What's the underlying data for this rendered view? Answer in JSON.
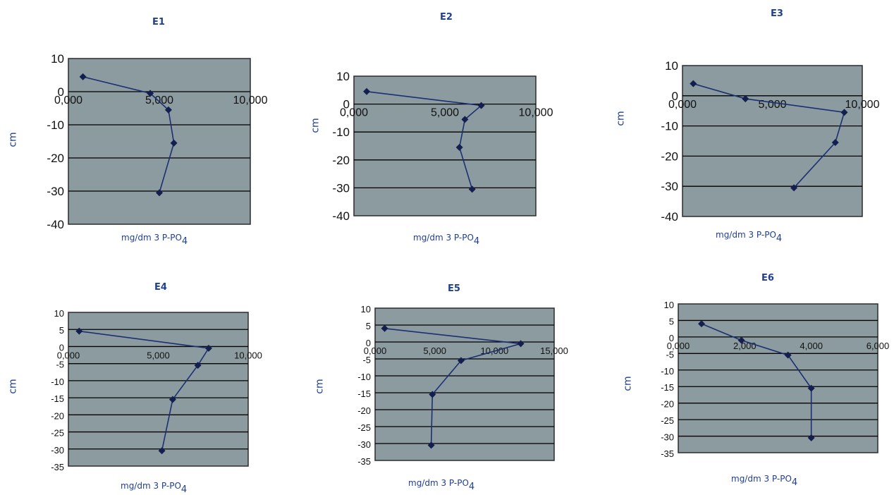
{
  "chart_data": [
    {
      "type": "line",
      "title": "E1",
      "ylabel": "cm",
      "xlabel": "mg/dm 3 P-PO",
      "xlabel_sub": "4",
      "xlim": [
        0,
        10
      ],
      "ylim": [
        -40,
        10
      ],
      "xticks": [
        "0,000",
        "5,000",
        "10,000"
      ],
      "yticks": [
        "10",
        "0",
        "-10",
        "-20",
        "-30",
        "-40"
      ],
      "series": [
        {
          "x": [
            0.8,
            4.5,
            5.5,
            5.8,
            5.0
          ],
          "y": [
            4.5,
            -0.5,
            -5.5,
            -15.5,
            -30.5
          ]
        }
      ]
    },
    {
      "type": "line",
      "title": "E2",
      "ylabel": "cm",
      "xlabel": "mg/dm 3 P-PO",
      "xlabel_sub": "4",
      "xlim": [
        0,
        10
      ],
      "ylim": [
        -40,
        10
      ],
      "xticks": [
        "0,000",
        "5,000",
        "10,000"
      ],
      "yticks": [
        "10",
        "0",
        "-10",
        "-20",
        "-30",
        "-40"
      ],
      "series": [
        {
          "x": [
            0.7,
            7.0,
            6.1,
            5.8,
            6.5
          ],
          "y": [
            4.5,
            -0.5,
            -5.5,
            -15.5,
            -30.5
          ]
        }
      ]
    },
    {
      "type": "line",
      "title": "E3",
      "ylabel": "cm",
      "xlabel": "mg/dm 3 P-PO",
      "xlabel_sub": "4",
      "xlim": [
        0,
        10
      ],
      "ylim": [
        -40,
        10
      ],
      "xticks": [
        "0,000",
        "5,000",
        "10,000"
      ],
      "yticks": [
        "10",
        "0",
        "-10",
        "-20",
        "-30",
        "-40"
      ],
      "series": [
        {
          "x": [
            0.6,
            3.5,
            9.0,
            8.5,
            6.2
          ],
          "y": [
            4,
            -1,
            -5.5,
            -15.5,
            -30.5
          ]
        }
      ]
    },
    {
      "type": "line",
      "title": "E4",
      "ylabel": "cm",
      "xlabel": "mg/dm 3 P-PO",
      "xlabel_sub": "4",
      "xlim": [
        0,
        10
      ],
      "ylim": [
        -35,
        10
      ],
      "xticks": [
        "0,000",
        "5,000",
        "10,000"
      ],
      "yticks": [
        "10",
        "5",
        "0",
        "-5",
        "-10",
        "-15",
        "-20",
        "-25",
        "-30",
        "-35"
      ],
      "series": [
        {
          "x": [
            0.6,
            7.8,
            7.2,
            5.8,
            5.2
          ],
          "y": [
            4.5,
            -0.5,
            -5.5,
            -15.5,
            -30.5
          ]
        }
      ]
    },
    {
      "type": "line",
      "title": "E5",
      "ylabel": "cm",
      "xlabel": "mg/dm 3 P-PO",
      "xlabel_sub": "4",
      "xlim": [
        0,
        15
      ],
      "ylim": [
        -35,
        10
      ],
      "xticks": [
        "0,000",
        "5,000",
        "10,000",
        "15,000"
      ],
      "yticks": [
        "10",
        "5",
        "0",
        "-5",
        "-10",
        "-15",
        "-20",
        "-25",
        "-30",
        "-35"
      ],
      "series": [
        {
          "x": [
            0.8,
            12.2,
            7.2,
            4.8,
            4.7
          ],
          "y": [
            4,
            -0.5,
            -5.5,
            -15.5,
            -30.5
          ]
        }
      ]
    },
    {
      "type": "line",
      "title": "E6",
      "ylabel": "cm",
      "xlabel": "mg/dm 3 P-PO",
      "xlabel_sub": "4",
      "xlim": [
        0,
        6
      ],
      "ylim": [
        -35,
        10
      ],
      "xticks": [
        "0,000",
        "2,000",
        "4,000",
        "6,000"
      ],
      "yticks": [
        "10",
        "5",
        "0",
        "-5",
        "-10",
        "-15",
        "-20",
        "-25",
        "-30",
        "-35"
      ],
      "series": [
        {
          "x": [
            0.7,
            1.9,
            3.3,
            4.0,
            4.0
          ],
          "y": [
            4,
            -1,
            -5.5,
            -15.5,
            -30.5
          ]
        }
      ]
    }
  ],
  "colors": {
    "plot_bg": "#8c9ba0",
    "line": "#1b2f72",
    "marker": "#141f50",
    "label": "#1f3f8f",
    "grid": "#000000"
  }
}
